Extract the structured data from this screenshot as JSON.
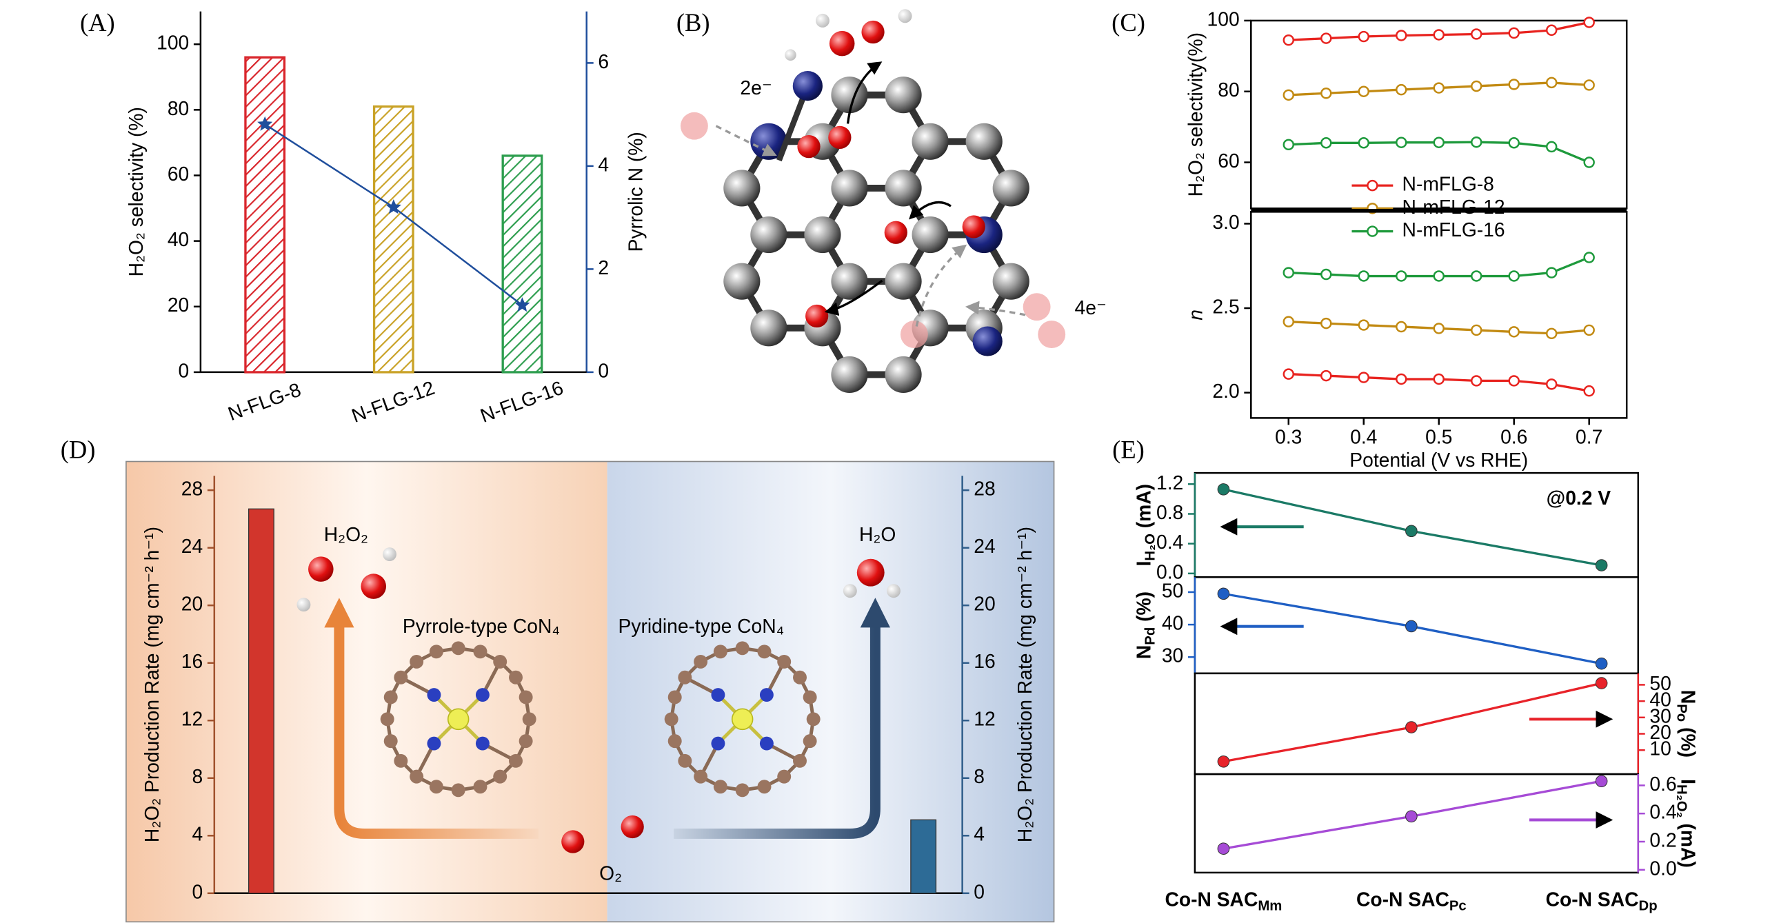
{
  "chart_data": [
    {
      "type": "bar",
      "panel_label": "(A)",
      "categories": [
        "N-FLG-8",
        "N-FLG-12",
        "N-FLG-16"
      ],
      "series": [
        {
          "colors": [
            "#d9262c",
            "#c9a227",
            "#2e9e4f"
          ],
          "values": [
            96,
            81,
            66
          ]
        },
        {
          "type": "line",
          "axis": "y2",
          "color": "#1f4e9c",
          "values": [
            4.81,
            3.2,
            1.3
          ]
        }
      ],
      "ylabel": "H₂O₂ selectivity (%)",
      "y2label": "Pyrrolic N (%)",
      "ylim": [
        0,
        110
      ],
      "yticks": [
        0,
        20,
        40,
        60,
        80,
        100
      ],
      "y2lim": [
        0,
        7
      ],
      "y2ticks": [
        0,
        2,
        4,
        6
      ]
    },
    {
      "type": "illustration",
      "panel_label": "(B)",
      "annotations": [
        "2e⁻",
        "4e⁻"
      ]
    },
    {
      "type": "line",
      "panel_label": "(C)",
      "x": [
        0.3,
        0.35,
        0.4,
        0.45,
        0.5,
        0.55,
        0.6,
        0.65,
        0.7
      ],
      "xlim": [
        0.25,
        0.75
      ],
      "series": [
        {
          "name": "N-mFLG-8",
          "color": "#e8231f",
          "values": [
            94.5,
            95,
            95.5,
            95.8,
            96,
            96.2,
            96.5,
            97.3,
            99.5
          ]
        },
        {
          "name": "N-mFLG-12",
          "color": "#c28a12",
          "values": [
            79,
            79.5,
            80,
            80.5,
            81,
            81.5,
            82,
            82.5,
            81.8
          ]
        },
        {
          "name": "N-mFLG-16",
          "color": "#1e9a3c",
          "values": [
            65,
            65.5,
            65.5,
            65.6,
            65.6,
            65.7,
            65.5,
            64.4,
            60
          ]
        }
      ],
      "legend": "lower center",
      "ylabel": "H₂O₂ selectivity(%)",
      "ylim": [
        47,
        100
      ],
      "yticks": [
        60,
        80,
        100
      ]
    },
    {
      "type": "line",
      "x": [
        0.3,
        0.35,
        0.4,
        0.45,
        0.5,
        0.55,
        0.6,
        0.65,
        0.7
      ],
      "xlim": [
        0.25,
        0.75
      ],
      "xticks": [
        0.3,
        0.4,
        0.5,
        0.6,
        0.7
      ],
      "xlabel": "Potential (V vs RHE)",
      "series": [
        {
          "color": "#e8231f",
          "values": [
            2.11,
            2.1,
            2.09,
            2.08,
            2.08,
            2.07,
            2.07,
            2.05,
            2.01
          ]
        },
        {
          "color": "#c28a12",
          "values": [
            2.42,
            2.41,
            2.4,
            2.39,
            2.38,
            2.37,
            2.36,
            2.35,
            2.37
          ]
        },
        {
          "color": "#1e9a3c",
          "values": [
            2.71,
            2.7,
            2.69,
            2.69,
            2.69,
            2.69,
            2.69,
            2.71,
            2.8
          ]
        }
      ],
      "ylabel": "n",
      "ylim": [
        1.85,
        3.07
      ],
      "yticks": [
        {
          "value": 2,
          "label": "2.0"
        },
        2.5,
        {
          "value": 3,
          "label": "3.0"
        }
      ]
    },
    {
      "type": "bar",
      "panel_label": "(D)",
      "categories": [
        null,
        null
      ],
      "series": [
        {
          "color": "#d2352c",
          "values": [
            26.7,
            null
          ]
        },
        {
          "axis": "y2",
          "color": "#2d6b96",
          "values": [
            null,
            5.1
          ]
        }
      ],
      "ylabel": "H₂O₂ Production Rate (mg cm⁻² h⁻¹)",
      "y2label": "H₂O₂ Production Rate (mg cm⁻² h⁻¹)",
      "ylim": [
        0,
        29
      ],
      "yticks": [
        0,
        4,
        8,
        12,
        16,
        20,
        24,
        28
      ],
      "y2lim": [
        0,
        29
      ],
      "y2ticks": [
        0,
        4,
        8,
        12,
        16,
        20,
        24,
        28
      ],
      "annotations": [
        "H₂O₂",
        "Pyrrole-type CoN₄",
        "Pyridine-type CoN₄",
        "H₂O",
        "O₂"
      ]
    },
    {
      "type": "line",
      "panel_label": "(E)",
      "annotations": [
        "@0.2 V"
      ],
      "series": [
        {
          "color": "#1b7a66",
          "values": [
            1.13,
            0.57,
            0.11
          ]
        }
      ],
      "ylabel": [
        {
          "text": "I"
        },
        {
          "text": "H₂O",
          "sub": true
        },
        {
          "text": " (mA)"
        }
      ],
      "ylim": [
        -0.05,
        1.35
      ],
      "yticks": [
        {
          "value": 0,
          "label": "0.0"
        },
        0.4,
        0.8,
        1.2
      ]
    },
    {
      "type": "line",
      "series": [
        {
          "color": "#1f5fc4",
          "values": [
            49.5,
            39.5,
            28
          ]
        }
      ],
      "ylabel": [
        {
          "text": "N"
        },
        {
          "text": "Pd",
          "sub": true
        },
        {
          "text": " (%)"
        }
      ],
      "ylim": [
        25,
        54.6
      ],
      "yticks": [
        30,
        40,
        50
      ]
    },
    {
      "type": "line",
      "series": [
        {
          "color": "#e8232a",
          "values": [
            3,
            24,
            51
          ]
        }
      ],
      "ylabel": [
        {
          "text": "N"
        },
        {
          "text": "Po",
          "sub": true
        },
        {
          "text": " (%)"
        }
      ],
      "ylim": [
        -4.7,
        57
      ],
      "yticks": [
        10,
        20,
        30,
        40,
        50
      ]
    },
    {
      "type": "line",
      "categories": [
        [
          {
            "text": "Co-N SAC"
          },
          {
            "text": "Mm",
            "sub": true
          }
        ],
        [
          {
            "text": "Co-N SAC"
          },
          {
            "text": "Pc",
            "sub": true
          }
        ],
        [
          {
            "text": "Co-N SAC"
          },
          {
            "text": "Dp",
            "sub": true
          }
        ]
      ],
      "series": [
        {
          "color": "#a64bd6",
          "values": [
            0.15,
            0.38,
            0.63
          ]
        }
      ],
      "ylabel": [
        {
          "text": "I"
        },
        {
          "text": "H₂O₂",
          "sub": true
        },
        {
          "text": " (mA)"
        }
      ],
      "ylim": [
        -0.02,
        0.68
      ],
      "yticks": [
        {
          "value": 0,
          "label": "0.0"
        },
        0.2,
        0.4,
        0.6
      ]
    }
  ]
}
